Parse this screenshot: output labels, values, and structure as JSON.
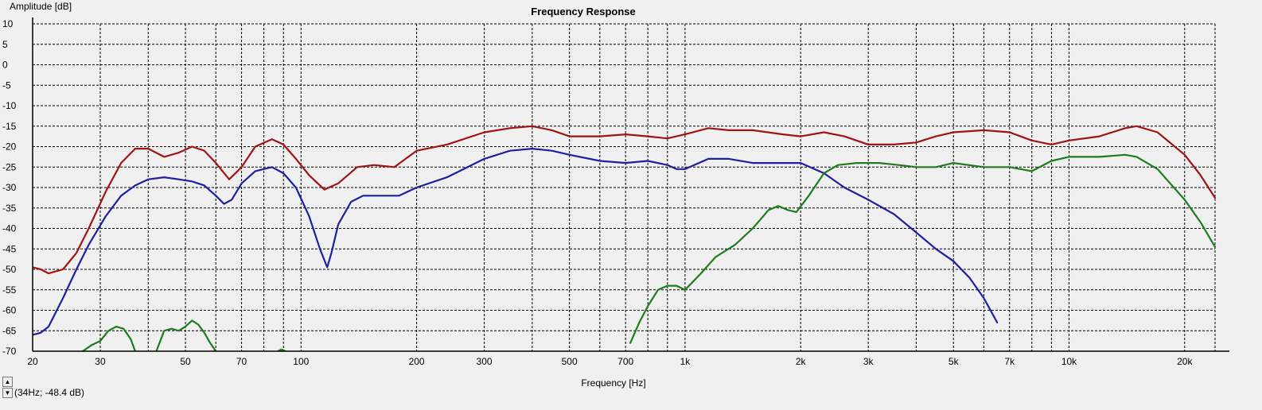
{
  "chart_data": {
    "type": "line",
    "title": "Frequency Response",
    "xlabel": "Frequency [Hz]",
    "ylabel": "Amplitude [dB]",
    "xscale": "log",
    "xlim": [
      20,
      24000
    ],
    "ylim": [
      -70,
      10
    ],
    "grid": true,
    "legend": "none",
    "y_ticks": [
      {
        "v": 10,
        "label": "10"
      },
      {
        "v": 5,
        "label": "5"
      },
      {
        "v": 0,
        "label": "0"
      },
      {
        "v": -5,
        "label": "-5"
      },
      {
        "v": -10,
        "label": "-10"
      },
      {
        "v": -15,
        "label": "-15"
      },
      {
        "v": -20,
        "label": "-20"
      },
      {
        "v": -25,
        "label": "-25"
      },
      {
        "v": -30,
        "label": "-30"
      },
      {
        "v": -35,
        "label": "-35"
      },
      {
        "v": -40,
        "label": "-40"
      },
      {
        "v": -45,
        "label": "-45"
      },
      {
        "v": -50,
        "label": "-50"
      },
      {
        "v": -55,
        "label": "-55"
      },
      {
        "v": -60,
        "label": "-60"
      },
      {
        "v": -65,
        "label": "-65"
      },
      {
        "v": -70,
        "label": "-70"
      }
    ],
    "x_ticks": [
      {
        "v": 20,
        "label": "20"
      },
      {
        "v": 30,
        "label": "30"
      },
      {
        "v": 50,
        "label": "50"
      },
      {
        "v": 70,
        "label": "70"
      },
      {
        "v": 100,
        "label": "100"
      },
      {
        "v": 200,
        "label": "200"
      },
      {
        "v": 300,
        "label": "300"
      },
      {
        "v": 500,
        "label": "500"
      },
      {
        "v": 700,
        "label": "700"
      },
      {
        "v": 1000,
        "label": "1k"
      },
      {
        "v": 2000,
        "label": "2k"
      },
      {
        "v": 3000,
        "label": "3k"
      },
      {
        "v": 5000,
        "label": "5k"
      },
      {
        "v": 7000,
        "label": "7k"
      },
      {
        "v": 10000,
        "label": "10k"
      },
      {
        "v": 20000,
        "label": "20k"
      }
    ],
    "x_grid": [
      20,
      30,
      40,
      50,
      60,
      70,
      80,
      90,
      100,
      200,
      300,
      400,
      500,
      600,
      700,
      800,
      900,
      1000,
      2000,
      3000,
      4000,
      5000,
      6000,
      7000,
      8000,
      9000,
      10000,
      20000
    ],
    "series": [
      {
        "color": "#a01414",
        "x": [
          20,
          21,
          22,
          24,
          26,
          28,
          31,
          34,
          37,
          40,
          44,
          48,
          52,
          56,
          60,
          65,
          70,
          76,
          84,
          90,
          97,
          105,
          115,
          125,
          140,
          155,
          175,
          200,
          240,
          300,
          350,
          400,
          450,
          500,
          600,
          700,
          800,
          900,
          1000,
          1150,
          1300,
          1500,
          1800,
          2000,
          2300,
          2600,
          3000,
          3500,
          4000,
          4500,
          5000,
          6000,
          7000,
          8000,
          9000,
          10000,
          12000,
          14000,
          15000,
          17000,
          20000,
          22000,
          24000
        ],
        "y": [
          -49.5,
          -50,
          -51,
          -50,
          -46,
          -40,
          -31,
          -24,
          -20.5,
          -20.5,
          -22.5,
          -21.5,
          -20,
          -21,
          -24,
          -28,
          -25,
          -20,
          -18.2,
          -19.5,
          -23,
          -27,
          -30.5,
          -29,
          -25,
          -24.5,
          -25,
          -21,
          -19.5,
          -16.5,
          -15.5,
          -15,
          -16,
          -17.5,
          -17.5,
          -17,
          -17.5,
          -18,
          -17,
          -15.5,
          -16,
          -16,
          -17,
          -17.5,
          -16.5,
          -17.5,
          -19.5,
          -19.5,
          -19,
          -17.5,
          -16.5,
          -16,
          -16.5,
          -18.5,
          -19.5,
          -18.5,
          -17.5,
          -15.5,
          -15,
          -16.5,
          -22,
          -27,
          -32.5
        ]
      },
      {
        "color": "#1f1fa0",
        "x": [
          20,
          21,
          22,
          24,
          26,
          28,
          31,
          34,
          37,
          40,
          44,
          48,
          52,
          56,
          60,
          63,
          66,
          70,
          76,
          84,
          90,
          97,
          105,
          112,
          117,
          120,
          125,
          135,
          145,
          160,
          180,
          200,
          240,
          300,
          350,
          400,
          450,
          500,
          600,
          700,
          800,
          900,
          950,
          1000,
          1150,
          1300,
          1500,
          1800,
          2000,
          2300,
          2600,
          3000,
          3500,
          4000,
          4500,
          5000,
          5500,
          6000,
          6500
        ],
        "y": [
          -66,
          -65.5,
          -64,
          -57,
          -50,
          -44,
          -37,
          -32,
          -29.5,
          -28,
          -27.5,
          -28,
          -28.5,
          -29.5,
          -32,
          -34,
          -33,
          -29,
          -26,
          -25,
          -26.5,
          -30,
          -37,
          -45,
          -49.5,
          -46,
          -39,
          -33.5,
          -32,
          -32,
          -32,
          -30,
          -27.5,
          -23,
          -21,
          -20.5,
          -21,
          -22,
          -23.5,
          -24,
          -23.5,
          -24.5,
          -25.5,
          -25.5,
          -23,
          -23,
          -24,
          -24,
          -24,
          -26.5,
          -30,
          -33,
          -36.5,
          -41,
          -45,
          -48,
          -52,
          -57,
          -63
        ]
      },
      {
        "color": "#1d7d1d",
        "x": [
          720,
          760,
          800,
          850,
          900,
          950,
          1000,
          1100,
          1200,
          1350,
          1500,
          1650,
          1750,
          1850,
          1950,
          2100,
          2300,
          2500,
          2800,
          3200,
          3600,
          4000,
          4500,
          5000,
          6000,
          7000,
          8000,
          9000,
          10000,
          12000,
          14000,
          15000,
          17000,
          20000,
          22000,
          24000
        ],
        "y": [
          -68,
          -63,
          -59,
          -55,
          -54,
          -54,
          -55,
          -51,
          -47,
          -44,
          -40,
          -35.5,
          -34.5,
          -35.5,
          -36,
          -32,
          -26.5,
          -24.5,
          -24,
          -24,
          -24.5,
          -25,
          -25,
          -24,
          -25,
          -25,
          -26,
          -23.5,
          -22.5,
          -22.5,
          -22,
          -22.5,
          -25.5,
          -33,
          -38.5,
          -44.5
        ]
      },
      {
        "color": "#1d7d1d",
        "x": [
          27,
          28.5,
          30,
          31.5,
          33,
          34.5,
          36,
          37
        ],
        "y": [
          -70,
          -68.5,
          -67.5,
          -65,
          -64,
          -64.5,
          -67,
          -70
        ]
      },
      {
        "color": "#1d7d1d",
        "x": [
          42,
          44,
          46,
          48,
          50,
          52,
          54,
          56,
          58,
          60
        ],
        "y": [
          -70,
          -65,
          -64.5,
          -65,
          -64,
          -62.5,
          -63.5,
          -65.5,
          -68,
          -70
        ]
      },
      {
        "color": "#1d7d1d",
        "x": [
          87,
          89,
          91
        ],
        "y": [
          -70,
          -69.6,
          -70
        ]
      }
    ]
  },
  "status": {
    "cursor_readout": "(34Hz; -48.4 dB)"
  },
  "icons": {
    "up": "up-arrow-icon",
    "down": "down-arrow-icon"
  }
}
